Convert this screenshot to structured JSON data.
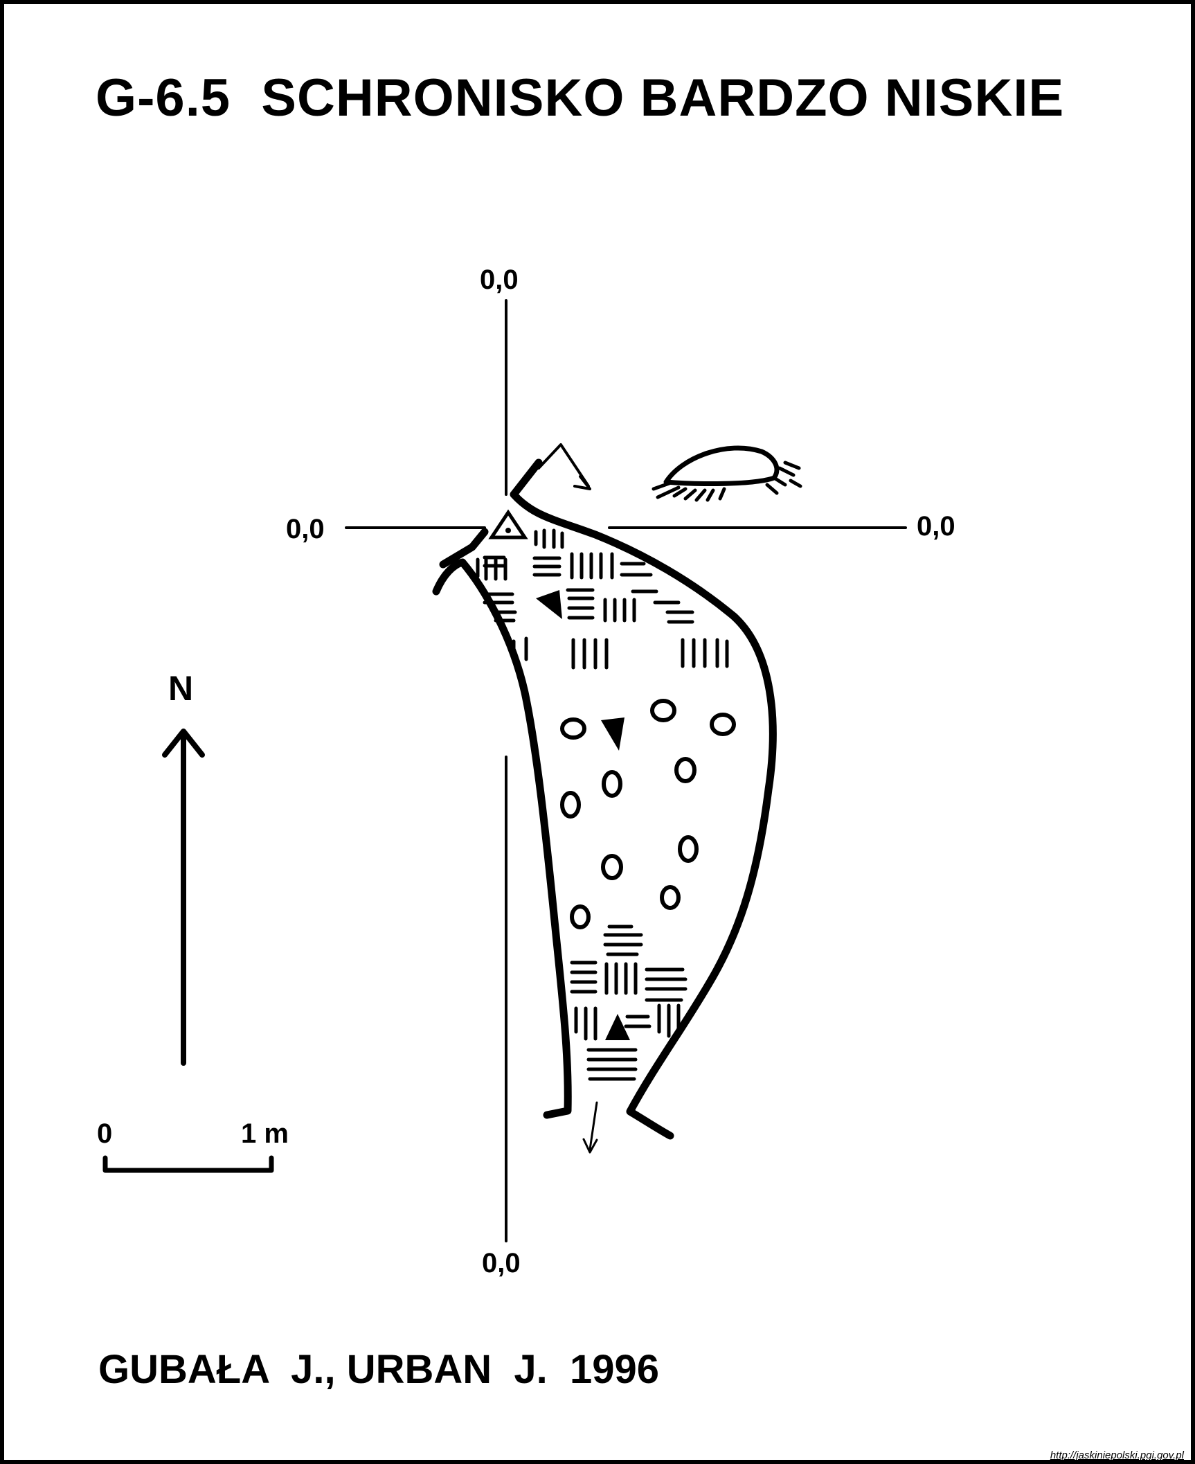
{
  "title": "G-6.5  SCHRONISKO BARDZO NISKIE",
  "authors": "GUBAŁA  J., URBAN  J.  1996",
  "source_url": "http://jaskiniepolski.pgi.gov.pl",
  "axis_labels": {
    "top": "0,0",
    "left": "0,0",
    "right": "0,0",
    "bottom": "0,0"
  },
  "north_label": "N",
  "scale": {
    "start_label": "0",
    "end_label": "1 m"
  },
  "colors": {
    "ink": "#000000",
    "paper": "#ffffff"
  }
}
